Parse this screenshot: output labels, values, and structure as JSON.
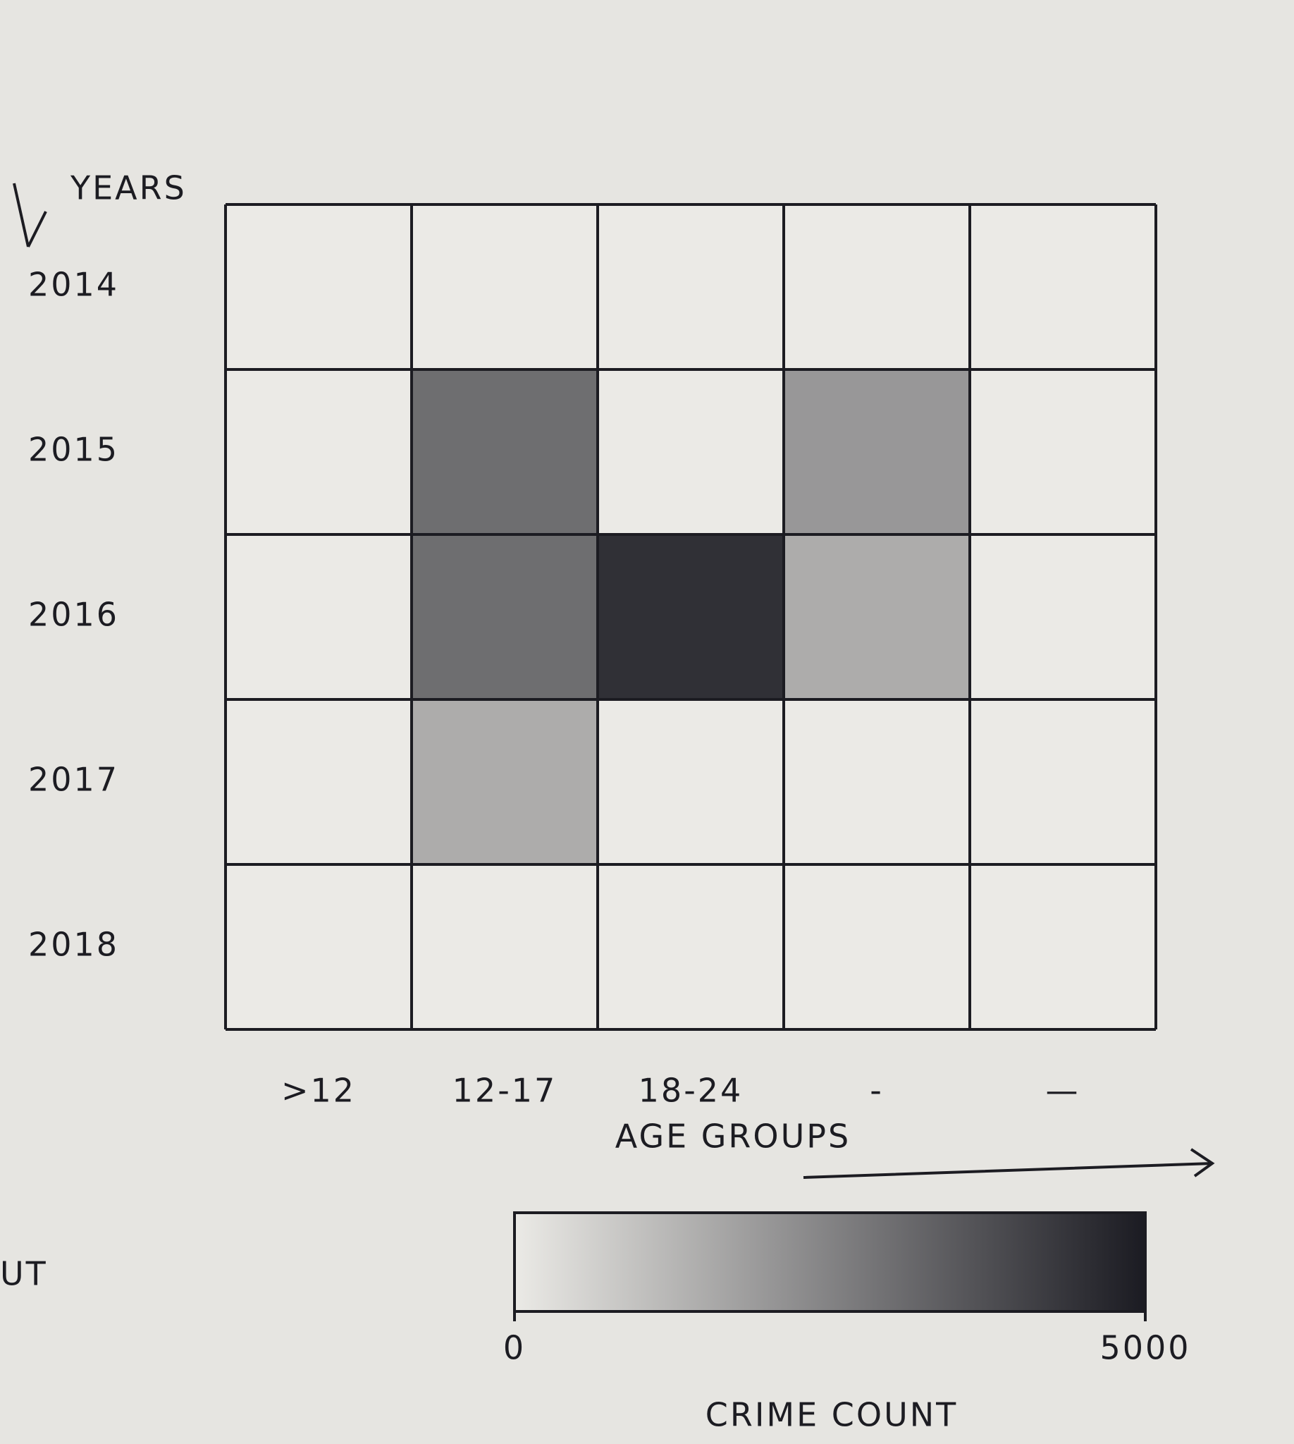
{
  "chart_data": {
    "type": "heatmap",
    "y_label": "YEARS",
    "x_label": "AGE GROUPS",
    "categories": [
      ">12",
      "12-17",
      "18-24",
      "-",
      "—"
    ],
    "rows": [
      "2014",
      "2015",
      "2016",
      "2017",
      "2018"
    ],
    "values": [
      [
        0,
        0,
        0,
        0,
        0
      ],
      [
        0,
        3000,
        0,
        2000,
        0
      ],
      [
        0,
        3000,
        4500,
        1500,
        0
      ],
      [
        0,
        1500,
        0,
        0,
        0
      ],
      [
        0,
        0,
        0,
        0,
        0
      ]
    ],
    "colormap": [
      "#ebeae6",
      "#1b1b22"
    ],
    "zlim": [
      0,
      5000
    ],
    "zticks": [
      0,
      5000
    ],
    "colorbar_label": "CRIME COUNT",
    "side_note": "UT"
  }
}
